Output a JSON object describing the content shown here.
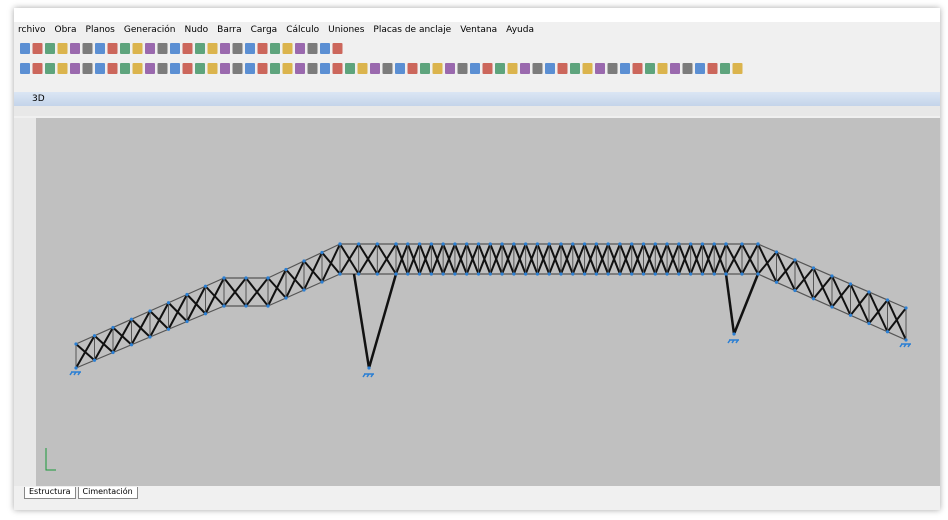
{
  "window": {
    "menu": [
      "rchivo",
      "Obra",
      "Planos",
      "Generación",
      "Nudo",
      "Barra",
      "Carga",
      "Cálculo",
      "Uniones",
      "Placas de anclaje",
      "Ventana",
      "Ayuda"
    ],
    "view_title": "3D",
    "tabs": [
      "Estructura",
      "Cimentación"
    ]
  }
}
